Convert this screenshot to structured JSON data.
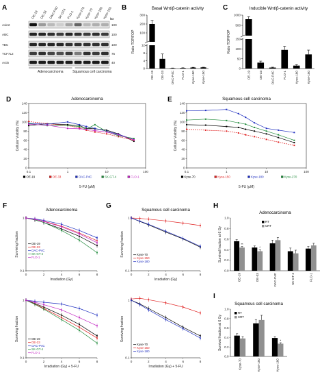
{
  "panels": {
    "A": "A",
    "B": "B",
    "C": "C",
    "D": "D",
    "E": "E",
    "F": "F",
    "G": "G",
    "H": "H",
    "I": "I"
  },
  "blot": {
    "kd_label": "kD",
    "rows": [
      {
        "label": "Axin2",
        "kd": "100"
      },
      {
        "label": "ABC",
        "kd": "100"
      },
      {
        "label": "TBC",
        "kd": "100"
      },
      {
        "label": "TCF7L2",
        "kd": "75"
      },
      {
        "label": "Actin",
        "kd": "40"
      }
    ],
    "lanes": [
      "OE-19",
      "OE-33",
      "OAC-P4C",
      "SK-GT4",
      "FLO-1",
      "Kyse-270",
      "Kyse-70",
      "Kyse-180",
      "Kyse-150"
    ],
    "groups": [
      "Adenocarcinoma",
      "Squamous cell carcinoma"
    ],
    "band_color": "#111111"
  },
  "chart_data": [
    {
      "id": "B",
      "type": "bar",
      "title": "Basal Wnt/β-catenin activity",
      "ylabel": "Ratio TOP/FOP",
      "categories": [
        "OE-19",
        "OE-33",
        "OAC-P4C",
        "FLO-1",
        "Kyse-180",
        "Kyse-150"
      ],
      "values": [
        200,
        5,
        0.2,
        0.3,
        0.5,
        0.6
      ],
      "errors": [
        40,
        2.5,
        0.1,
        0.1,
        0.15,
        0.1
      ],
      "yticks_upper": [
        "100",
        "200",
        "300"
      ],
      "yticks_lower": [
        "0",
        "4",
        "8",
        "12"
      ],
      "axis_break": true,
      "bar_color": "#000000"
    },
    {
      "id": "C",
      "type": "bar",
      "title": "Inducible Wnt/β-catenin activity",
      "ylabel": "Ratio TOP/FOP",
      "categories": [
        "OE-19",
        "OE-33",
        "OAC-P4C",
        "FLO-1",
        "Kyse-180",
        "Kyse-150"
      ],
      "values": [
        800,
        30,
        5,
        95,
        15,
        72
      ],
      "errors": [
        120,
        8,
        2,
        18,
        5,
        22
      ],
      "yticks_upper": [
        "500",
        "1000"
      ],
      "yticks_lower": [
        "0",
        "50",
        "100",
        "150"
      ],
      "axis_break": true,
      "bar_color": "#000000"
    },
    {
      "id": "D",
      "type": "line",
      "title": "Adenocarcinoma",
      "xlabel": "5-FU (μM)",
      "ylabel": "Cellular Viability (%)",
      "xscale": "log",
      "xlim": [
        0.1,
        100
      ],
      "ylim": [
        0,
        140
      ],
      "xticks": [
        "0.1",
        "1",
        "10",
        "100"
      ],
      "yticks": [
        "0",
        "20",
        "40",
        "60",
        "80",
        "100",
        "120",
        "140"
      ],
      "x": [
        0.1,
        0.3,
        1,
        2,
        3,
        5,
        10,
        20,
        50
      ],
      "series": [
        {
          "name": "OE-19",
          "color": "#000000",
          "values": [
            92,
            96,
            94,
            92,
            86,
            85,
            82,
            74,
            58
          ]
        },
        {
          "name": "OE-33",
          "color": "#e02020",
          "values": [
            101,
            96,
            92,
            87,
            82,
            78,
            74,
            68,
            60
          ]
        },
        {
          "name": "OAC-P4C",
          "color": "#2030c0",
          "values": [
            97,
            95,
            100,
            94,
            90,
            86,
            80,
            73,
            62
          ]
        },
        {
          "name": "SK-GT-4",
          "color": "#1f8a3a",
          "values": [
            96,
            92,
            92,
            90,
            84,
            94,
            79,
            70,
            64
          ]
        },
        {
          "name": "FLO-1",
          "color": "#c020c0",
          "values": [
            95,
            93,
            86,
            85,
            84,
            81,
            78,
            72,
            61
          ]
        }
      ]
    },
    {
      "id": "E",
      "type": "line",
      "title": "Squamous cell carcinoma",
      "xlabel": "5-FU (μM)",
      "ylabel": "Cellular Viability (%)",
      "xscale": "log",
      "xlim": [
        0.1,
        100
      ],
      "ylim": [
        0,
        140
      ],
      "xticks": [
        "0.1",
        "1",
        "10",
        "100"
      ],
      "yticks": [
        "0",
        "20",
        "40",
        "60",
        "80",
        "100",
        "120",
        "140"
      ],
      "x": [
        0.1,
        0.3,
        1,
        2,
        3,
        5,
        10,
        20,
        50
      ],
      "series": [
        {
          "name": "Kyse-70",
          "color": "#000000",
          "values": [
            94,
            93,
            90,
            88,
            84,
            80,
            74,
            66,
            55
          ]
        },
        {
          "name": "Kyse-150",
          "color": "#e02020",
          "values": [
            84,
            82,
            80,
            76,
            72,
            68,
            62,
            56,
            49
          ]
        },
        {
          "name": "Kyse-180",
          "color": "#2030c0",
          "values": [
            124,
            125,
            127,
            118,
            110,
            98,
            86,
            82,
            77
          ]
        },
        {
          "name": "Kyse-270",
          "color": "#1f8a3a",
          "values": [
            104,
            106,
            103,
            98,
            95,
            88,
            80,
            72,
            60
          ]
        }
      ]
    },
    {
      "id": "F-top",
      "type": "line",
      "title": "Adenocarcinoma",
      "xlabel": "Irradiation (Gy)",
      "ylabel": "Surviving fraction",
      "yscale": "log",
      "ylim": [
        0.1,
        1
      ],
      "xlim": [
        0,
        8
      ],
      "xticks": [
        "0",
        "2",
        "4",
        "6",
        "8"
      ],
      "yticks": [
        "0.1",
        "1"
      ],
      "x": [
        0,
        1,
        2,
        4,
        6,
        8
      ],
      "series": [
        {
          "name": "OE-19",
          "color": "#000000",
          "values": [
            1.0,
            0.92,
            0.82,
            0.62,
            0.45,
            0.3
          ]
        },
        {
          "name": "OE-33",
          "color": "#e02020",
          "values": [
            1.0,
            0.94,
            0.87,
            0.7,
            0.52,
            0.37
          ]
        },
        {
          "name": "OAC-P4C",
          "color": "#2030c0",
          "values": [
            1.0,
            0.96,
            0.9,
            0.76,
            0.58,
            0.42
          ]
        },
        {
          "name": "SK-GT-4",
          "color": "#1f8a3a",
          "values": [
            1.0,
            0.92,
            0.82,
            0.58,
            0.38,
            0.22
          ]
        },
        {
          "name": "FLO-1",
          "color": "#c020c0",
          "values": [
            1.0,
            0.94,
            0.86,
            0.68,
            0.5,
            0.34
          ]
        }
      ]
    },
    {
      "id": "F-bottom",
      "type": "line",
      "title": "",
      "xlabel": "Irradiation (Gy) + 5-FU",
      "ylabel": "Surviving fraction",
      "yscale": "log",
      "ylim": [
        0.1,
        1
      ],
      "xlim": [
        0,
        8
      ],
      "xticks": [
        "0",
        "2",
        "4",
        "6",
        "8"
      ],
      "yticks": [
        "0.1",
        "1"
      ],
      "x": [
        0,
        1,
        2,
        4,
        6,
        8
      ],
      "series": [
        {
          "name": "OE-19",
          "color": "#000000",
          "values": [
            1.0,
            0.88,
            0.76,
            0.55,
            0.38,
            0.24
          ]
        },
        {
          "name": "OE-33",
          "color": "#e02020",
          "values": [
            1.0,
            0.86,
            0.72,
            0.5,
            0.34,
            0.22
          ]
        },
        {
          "name": "OAC-P4C",
          "color": "#2030c0",
          "values": [
            1.0,
            0.96,
            0.92,
            0.86,
            0.72,
            0.55
          ]
        },
        {
          "name": "SK-GT-4",
          "color": "#1f8a3a",
          "values": [
            1.0,
            0.85,
            0.7,
            0.46,
            0.3,
            0.18
          ]
        },
        {
          "name": "FLO-1",
          "color": "#c020c0",
          "values": [
            1.0,
            0.92,
            0.84,
            0.68,
            0.5,
            0.36
          ]
        }
      ]
    },
    {
      "id": "G-top",
      "type": "line",
      "title": "Squamous cell carcinoma",
      "xlabel": "Irradiation (Gy)",
      "ylabel": "Surviving fraction",
      "yscale": "log",
      "ylim": [
        0.1,
        1
      ],
      "xlim": [
        0,
        8
      ],
      "xticks": [
        "0",
        "2",
        "4",
        "6",
        "8"
      ],
      "yticks": [
        "0.1",
        "1"
      ],
      "x": [
        0,
        1,
        2,
        4,
        6,
        8
      ],
      "series": [
        {
          "name": "Kyse-70",
          "color": "#000000",
          "values": [
            1.0,
            0.86,
            0.74,
            0.54,
            0.4,
            0.28
          ]
        },
        {
          "name": "Kyse-150",
          "color": "#e02020",
          "values": [
            1.0,
            0.98,
            0.95,
            0.88,
            0.8,
            0.72
          ]
        },
        {
          "name": "Kyse-180",
          "color": "#2030c0",
          "values": [
            1.0,
            0.87,
            0.76,
            0.56,
            0.41,
            0.29
          ]
        }
      ]
    },
    {
      "id": "G-bottom",
      "type": "line",
      "title": "",
      "xlabel": "Irradiation (Gy) + 5-FU",
      "ylabel": "Surviving fraction",
      "yscale": "log",
      "ylim": [
        0.1,
        1
      ],
      "xlim": [
        0,
        8
      ],
      "xticks": [
        "0",
        "2",
        "4",
        "6",
        "8"
      ],
      "yticks": [
        "0.1",
        "1"
      ],
      "x": [
        0,
        1,
        2,
        4,
        6,
        8
      ],
      "series": [
        {
          "name": "Kyse-70",
          "color": "#000000",
          "values": [
            1.0,
            0.86,
            0.72,
            0.5,
            0.34,
            0.24
          ]
        },
        {
          "name": "Kyse-150",
          "color": "#e02020",
          "values": [
            1.05,
            1.08,
            1.02,
            0.9,
            0.76,
            0.6
          ]
        },
        {
          "name": "Kyse-180",
          "color": "#2030c0",
          "values": [
            1.0,
            0.84,
            0.68,
            0.46,
            0.32,
            0.22
          ]
        }
      ]
    },
    {
      "id": "H",
      "type": "bar",
      "title": "Adenocarcinoma",
      "ylabel": "Survival fraction at 6 Gy",
      "ylim": [
        0,
        1
      ],
      "yticks": [
        "0.0",
        "0.2",
        "0.4",
        "0.6",
        "0.8",
        "1.0"
      ],
      "categories": [
        "OE-19",
        "OE-33",
        "OAC-P4C",
        "SK-GT-4",
        "FLO-1"
      ],
      "series": [
        {
          "name": "RT",
          "color": "#000000",
          "values": [
            0.56,
            0.44,
            0.52,
            0.37,
            0.42
          ],
          "errors": [
            0.03,
            0.03,
            0.06,
            0.06,
            0.04
          ]
        },
        {
          "name": "CRT",
          "color": "#909090",
          "values": [
            0.44,
            0.37,
            0.58,
            0.33,
            0.48
          ],
          "errors": [
            0.02,
            0.03,
            0.05,
            0.06,
            0.04
          ]
        }
      ],
      "annotations": [
        "**",
        "*"
      ]
    },
    {
      "id": "I",
      "type": "bar",
      "title": "Squamous cell carcinoma",
      "ylabel": "Survival fraction at 6 Gy",
      "ylim": [
        0,
        1
      ],
      "yticks": [
        "0.0",
        "0.2",
        "0.4",
        "0.6",
        "0.8",
        "1.0"
      ],
      "categories": [
        "Kyse-70",
        "Kyse-150",
        "Kyse-180"
      ],
      "series": [
        {
          "name": "RT",
          "color": "#000000",
          "values": [
            0.44,
            0.7,
            0.39
          ],
          "errors": [
            0.04,
            0.08,
            0.03
          ]
        },
        {
          "name": "CRT",
          "color": "#909090",
          "values": [
            0.38,
            0.77,
            0.27
          ],
          "errors": [
            0.04,
            0.1,
            0.02
          ]
        }
      ],
      "annotations": [
        "*"
      ]
    }
  ]
}
